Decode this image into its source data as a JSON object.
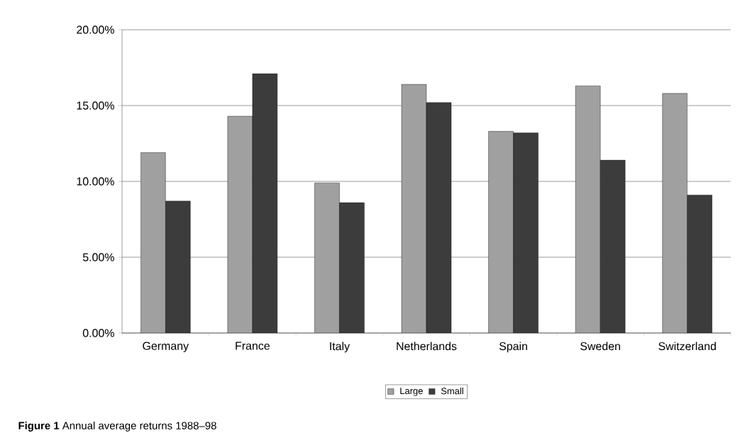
{
  "chart_data": {
    "type": "bar",
    "title": "**Figure 1** Annual average returns 1988–98",
    "categories": [
      "Germany",
      "France",
      "Italy",
      "Netherlands",
      "Spain",
      "Sweden",
      "Switzerland"
    ],
    "series": [
      {
        "name": "Large",
        "color": "#a0a0a0",
        "values": [
          11.9,
          14.3,
          9.9,
          16.4,
          13.3,
          16.3,
          15.8
        ]
      },
      {
        "name": "Small",
        "color": "#3c3c3c",
        "values": [
          8.7,
          17.1,
          8.6,
          15.2,
          13.2,
          11.4,
          9.1
        ]
      }
    ],
    "ylim": [
      0,
      20
    ],
    "yticks": [
      {
        "value": 0,
        "label": "0.00%"
      },
      {
        "value": 5,
        "label": "5.00%"
      },
      {
        "value": 10,
        "label": "10.00%"
      },
      {
        "value": 15,
        "label": "15.00%"
      },
      {
        "value": 20,
        "label": "20.00%"
      }
    ],
    "grid": "y",
    "legend": "bottom"
  }
}
